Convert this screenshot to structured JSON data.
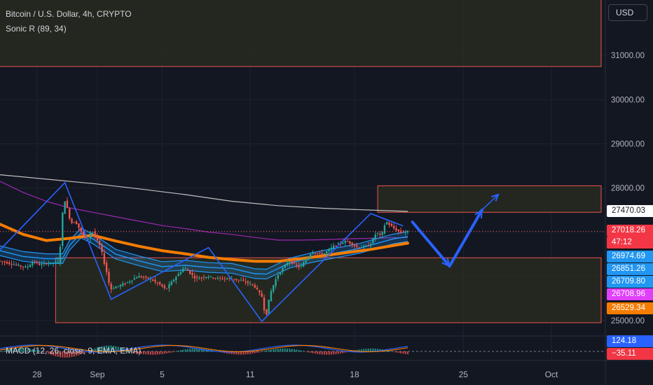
{
  "legend": {
    "symbol": "Bitcoin / U.S. Dollar, 4h, CRYPTO",
    "indicator1": "Sonic R (89, 34)",
    "indicator2": "MACD (12, 26, close, 9, EMA, EMA)"
  },
  "currency_button": "USD",
  "price_tags": [
    {
      "text": "27470.03",
      "bg": "#ffffff",
      "fg": "#131722",
      "value": 27470.03
    },
    {
      "text": "27018.26",
      "bg": "#f23645",
      "fg": "#ffffff",
      "value": 27018.26
    },
    {
      "text": "47:12",
      "bg": "#f23645",
      "fg": "#ffffff",
      "value": null
    },
    {
      "text": "26974.69",
      "bg": "#2196f3",
      "fg": "#ffffff",
      "value": 26974.69
    },
    {
      "text": "26851.26",
      "bg": "#2196f3",
      "fg": "#ffffff",
      "value": 26851.26
    },
    {
      "text": "26709.80",
      "bg": "#2196f3",
      "fg": "#ffffff",
      "value": 26709.8
    },
    {
      "text": "26708.96",
      "bg": "#e040fb",
      "fg": "#ffffff",
      "value": 26708.96
    },
    {
      "text": "26529.34",
      "bg": "#f57c00",
      "fg": "#ffffff",
      "value": 26529.34
    }
  ],
  "macd_tags": [
    {
      "text": "124.18",
      "bg": "#2962ff",
      "fg": "#ffffff"
    },
    {
      "text": "−35.11",
      "bg": "#f23645",
      "fg": "#ffffff"
    }
  ],
  "colors": {
    "background": "#131722",
    "grid": "#1e222d",
    "bull": "#26a69a",
    "bear": "#ef5350",
    "ema_band": "#2196f3",
    "ema_orange": "#f57c00",
    "ma_purple": "#9c27b0",
    "ma_white": "#c0c0c0",
    "drawing": "#2962ff",
    "zone_border": "#ef5350",
    "zone_fill": "#2a2e1f"
  },
  "chart_data": {
    "type": "candlestick",
    "symbol": "Bitcoin / U.S. Dollar",
    "timeframe": "4h",
    "x_labels": [
      "28",
      "Sep",
      "5",
      "11",
      "18",
      "25",
      "Oct"
    ],
    "y_ticks": [
      "31000.00",
      "30000.00",
      "29000.00",
      "28000.00",
      "25000.00"
    ],
    "y_tick_values": [
      31000,
      30000,
      29000,
      28000,
      25000
    ],
    "ylim": [
      24750,
      31950
    ],
    "grid": true,
    "current_price": 27018.26,
    "price_path": [
      [
        0,
        26350
      ],
      [
        12,
        26200
      ],
      [
        15,
        26340
      ],
      [
        18,
        26250
      ],
      [
        20,
        26300
      ],
      [
        22,
        26290
      ],
      [
        24,
        26320
      ],
      [
        26,
        26310
      ],
      [
        28,
        27800
      ],
      [
        30,
        27450
      ],
      [
        31,
        27200
      ],
      [
        33,
        27250
      ],
      [
        35,
        27050
      ],
      [
        38,
        26800
      ],
      [
        40,
        27050
      ],
      [
        44,
        26650
      ],
      [
        45,
        26400
      ],
      [
        47,
        26000
      ],
      [
        48,
        25700
      ],
      [
        50,
        25750
      ],
      [
        55,
        25850
      ],
      [
        60,
        26000
      ],
      [
        65,
        25950
      ],
      [
        70,
        25800
      ],
      [
        72,
        25700
      ],
      [
        75,
        25900
      ],
      [
        80,
        26200
      ],
      [
        85,
        25950
      ],
      [
        90,
        26000
      ],
      [
        95,
        25950
      ],
      [
        100,
        25950
      ],
      [
        105,
        25900
      ],
      [
        110,
        25800
      ],
      [
        114,
        25500
      ],
      [
        115,
        25000
      ],
      [
        117,
        25600
      ],
      [
        120,
        26000
      ],
      [
        125,
        26350
      ],
      [
        130,
        26200
      ],
      [
        135,
        26550
      ],
      [
        140,
        26500
      ],
      [
        145,
        26700
      ],
      [
        150,
        26800
      ],
      [
        155,
        26650
      ],
      [
        160,
        26700
      ],
      [
        163,
        27000
      ],
      [
        165,
        26900
      ],
      [
        167,
        27250
      ],
      [
        170,
        27100
      ],
      [
        173,
        27000
      ],
      [
        176,
        27018
      ]
    ],
    "ema_band_path": [
      [
        0,
        26580
      ],
      [
        10,
        26450
      ],
      [
        20,
        26400
      ],
      [
        27,
        26400
      ],
      [
        30,
        26700
      ],
      [
        35,
        26980
      ],
      [
        40,
        26850
      ],
      [
        50,
        26500
      ],
      [
        60,
        26350
      ],
      [
        70,
        26220
      ],
      [
        80,
        26250
      ],
      [
        90,
        26200
      ],
      [
        100,
        26180
      ],
      [
        110,
        26060
      ],
      [
        115,
        26050
      ],
      [
        125,
        26300
      ],
      [
        135,
        26430
      ],
      [
        145,
        26530
      ],
      [
        155,
        26630
      ],
      [
        163,
        26750
      ],
      [
        170,
        26850
      ],
      [
        176,
        26900
      ]
    ],
    "ema_orange_path": [
      [
        0,
        27180
      ],
      [
        10,
        26950
      ],
      [
        20,
        26810
      ],
      [
        30,
        26860
      ],
      [
        40,
        26930
      ],
      [
        50,
        26800
      ],
      [
        60,
        26680
      ],
      [
        70,
        26580
      ],
      [
        80,
        26510
      ],
      [
        90,
        26430
      ],
      [
        100,
        26380
      ],
      [
        110,
        26340
      ],
      [
        120,
        26340
      ],
      [
        130,
        26400
      ],
      [
        140,
        26470
      ],
      [
        150,
        26540
      ],
      [
        160,
        26610
      ],
      [
        170,
        26700
      ],
      [
        176,
        26750
      ]
    ],
    "ma_purple_path": [
      [
        0,
        28150
      ],
      [
        10,
        27900
      ],
      [
        20,
        27700
      ],
      [
        30,
        27550
      ],
      [
        40,
        27450
      ],
      [
        50,
        27350
      ],
      [
        60,
        27250
      ],
      [
        70,
        27150
      ],
      [
        80,
        27080
      ],
      [
        90,
        27000
      ],
      [
        100,
        26950
      ],
      [
        110,
        26880
      ],
      [
        120,
        26820
      ],
      [
        130,
        26820
      ],
      [
        140,
        26830
      ],
      [
        150,
        26850
      ],
      [
        160,
        26860
      ],
      [
        176,
        26880
      ]
    ],
    "ma_white_path": [
      [
        0,
        28300
      ],
      [
        20,
        28200
      ],
      [
        40,
        28100
      ],
      [
        60,
        27980
      ],
      [
        80,
        27850
      ],
      [
        100,
        27700
      ],
      [
        120,
        27600
      ],
      [
        140,
        27540
      ],
      [
        160,
        27500
      ],
      [
        176,
        27470
      ]
    ],
    "zones": [
      {
        "name": "upper-zone",
        "x0": -25,
        "x1": 262,
        "y0": 30750,
        "y1": 32400
      },
      {
        "name": "resistance-zone",
        "x0": 163,
        "x1": 262,
        "y0": 27450,
        "y1": 28050
      },
      {
        "name": "support-zone",
        "x0": 24,
        "x1": 262,
        "y0": 24950,
        "y1": 26420
      }
    ],
    "pattern_zigzag": [
      [
        0,
        26600
      ],
      [
        28,
        28120
      ],
      [
        48,
        25480
      ],
      [
        90,
        26650
      ],
      [
        113,
        24980
      ],
      [
        160,
        27420
      ],
      [
        174,
        27140
      ]
    ],
    "projection_path": [
      [
        178,
        27230
      ],
      [
        194,
        26230
      ],
      [
        208,
        27500
      ],
      [
        215,
        27850
      ]
    ],
    "macd": {
      "macd_value": 124.18,
      "signal_value": -35.11
    }
  }
}
